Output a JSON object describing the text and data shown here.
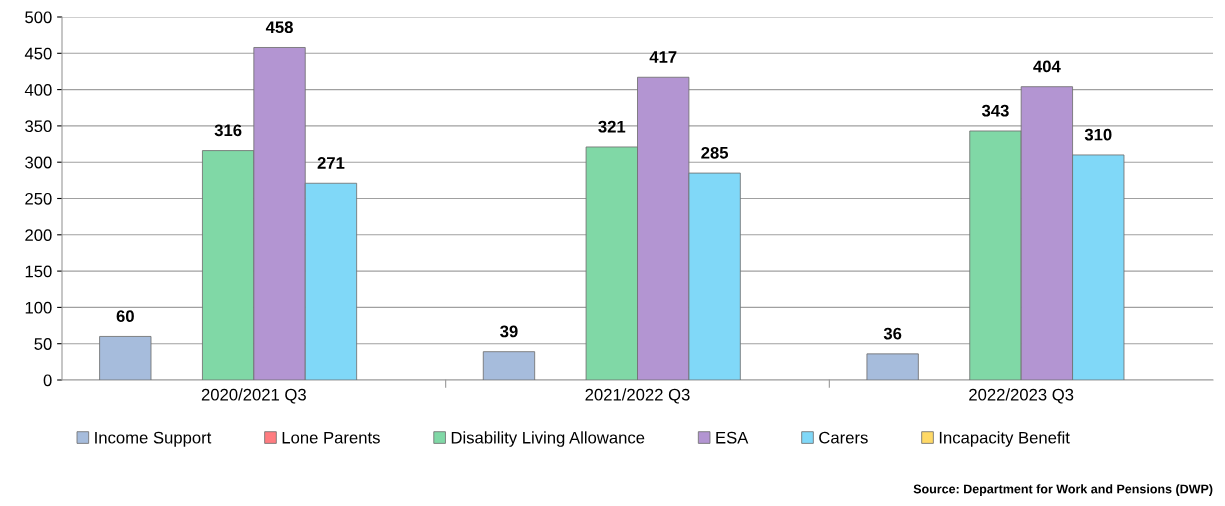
{
  "chart_data": {
    "type": "bar",
    "categories": [
      "2020/2021 Q3",
      "2021/2022 Q3",
      "2022/2023 Q3"
    ],
    "series": [
      {
        "name": "Income Support",
        "color": "#a6bcdc",
        "values": [
          60,
          39,
          36
        ]
      },
      {
        "name": "Lone Parents",
        "color": "#ff7c80",
        "values": [
          null,
          null,
          null
        ]
      },
      {
        "name": "Disability Living Allowance",
        "color": "#80d8a6",
        "values": [
          316,
          321,
          343
        ]
      },
      {
        "name": "ESA",
        "color": "#b395d2",
        "values": [
          458,
          417,
          404
        ]
      },
      {
        "name": "Carers",
        "color": "#80d8f8",
        "values": [
          271,
          285,
          310
        ]
      },
      {
        "name": "Incapacity Benefit",
        "color": "#ffd966",
        "values": [
          null,
          null,
          null
        ]
      }
    ],
    "ylim": [
      0,
      500
    ],
    "yticks": [
      0,
      50,
      100,
      150,
      200,
      250,
      300,
      350,
      400,
      450,
      500
    ],
    "grid": "y",
    "legend": "bottom",
    "data_labels": true,
    "annotations": [
      "Source: Department for Work and Pensions (DWP)"
    ]
  }
}
